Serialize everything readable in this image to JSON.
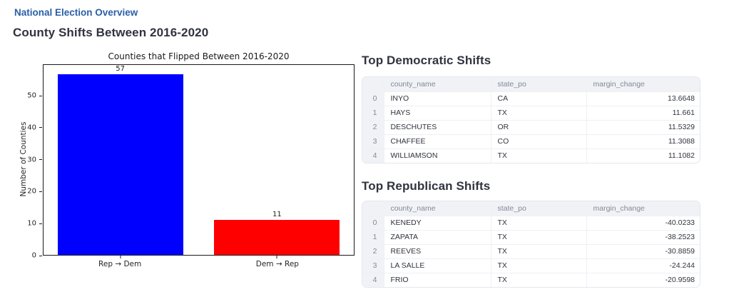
{
  "page": {
    "nav_link": "National Election Overview",
    "title": "County Shifts Between 2016-2020"
  },
  "chart_data": {
    "type": "bar",
    "title": "Counties that Flipped Between 2016-2020",
    "categories": [
      "Rep → Dem",
      "Dem → Rep"
    ],
    "values": [
      57,
      11
    ],
    "bar_labels": [
      "57",
      "11"
    ],
    "bar_colors": [
      "#0000ff",
      "#ff0000"
    ],
    "xlabel": "",
    "ylabel": "Number of Counties",
    "ylim": [
      0,
      59.85
    ],
    "yticks": [
      0,
      10,
      20,
      30,
      40,
      50
    ],
    "grid": false,
    "legend": "none",
    "bar_width_fraction": 0.8
  },
  "tables": [
    {
      "title": "Top Democratic Shifts",
      "columns": [
        "",
        "county_name",
        "state_po",
        "margin_change"
      ],
      "rows": [
        [
          "0",
          "INYO",
          "CA",
          "13.6648"
        ],
        [
          "1",
          "HAYS",
          "TX",
          "11.661"
        ],
        [
          "2",
          "DESCHUTES",
          "OR",
          "11.5329"
        ],
        [
          "3",
          "CHAFFEE",
          "CO",
          "11.3088"
        ],
        [
          "4",
          "WILLIAMSON",
          "TX",
          "11.1082"
        ]
      ]
    },
    {
      "title": "Top Republican Shifts",
      "columns": [
        "",
        "county_name",
        "state_po",
        "margin_change"
      ],
      "rows": [
        [
          "0",
          "KENEDY",
          "TX",
          "-40.0233"
        ],
        [
          "1",
          "ZAPATA",
          "TX",
          "-38.2523"
        ],
        [
          "2",
          "REEVES",
          "TX",
          "-30.8859"
        ],
        [
          "3",
          "LA SALLE",
          "TX",
          "-24.244"
        ],
        [
          "4",
          "FRIO",
          "TX",
          "-20.9598"
        ]
      ]
    }
  ],
  "colors": {
    "nav_link_blue": "#2b5fa6",
    "heading_text": "#31333f",
    "table_header_bg": "#f0f2f6",
    "table_header_text": "#848997",
    "table_border": "#e4e7ee",
    "bar_blue": "#0000ff",
    "bar_red": "#ff0000"
  }
}
